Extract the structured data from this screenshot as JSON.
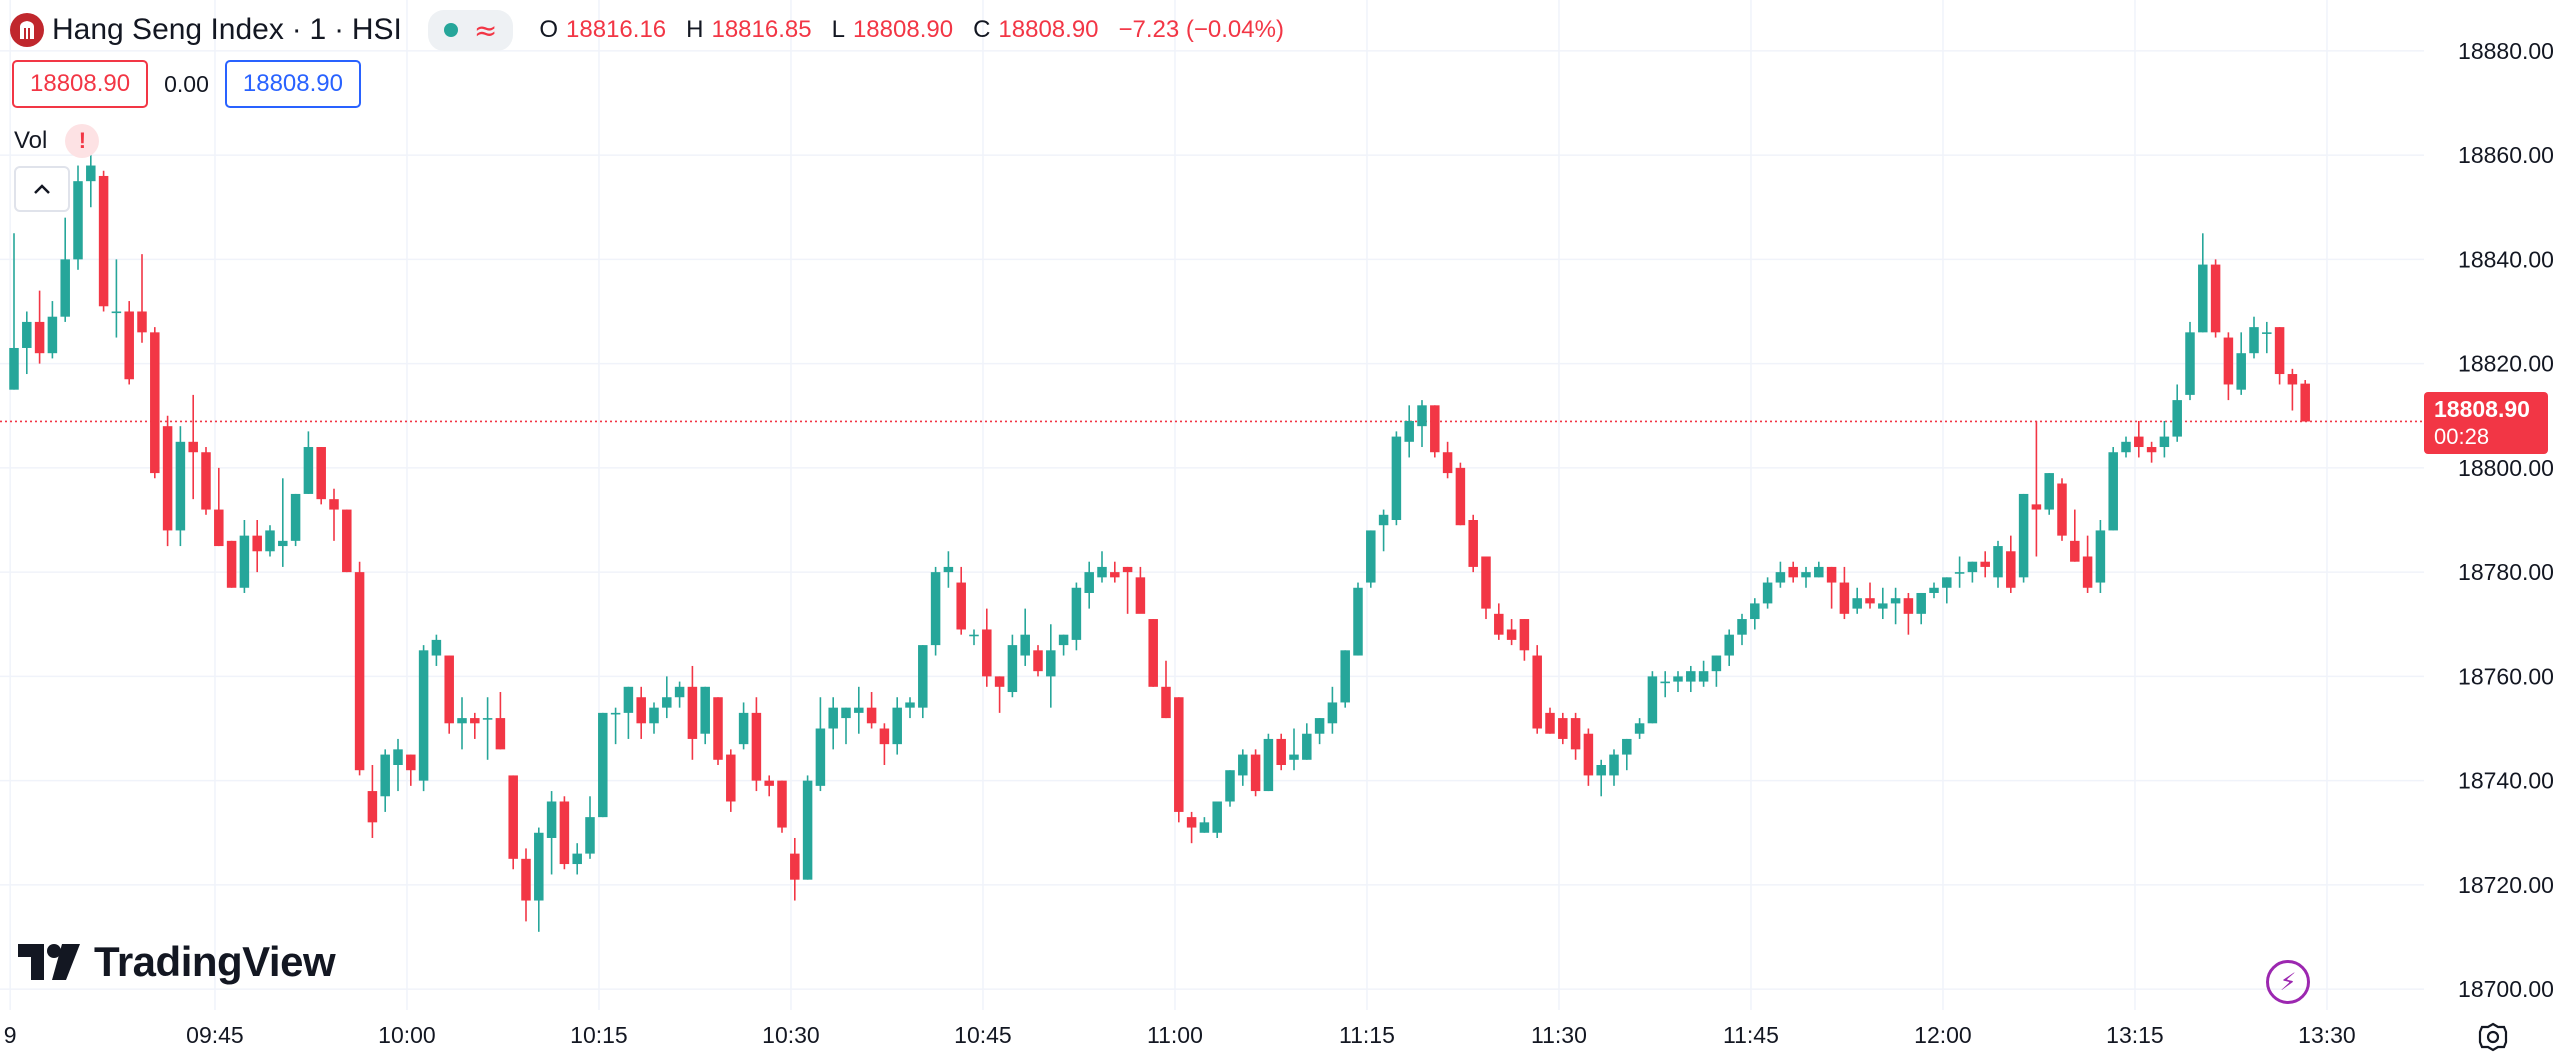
{
  "header": {
    "symbol_title": "Hang Seng Index",
    "interval": "1",
    "exchange": "HSI",
    "separator": "·",
    "status_icons": [
      "market-open-dot-icon",
      "delayed-data-icon"
    ],
    "ohlc": {
      "o_label": "O",
      "o_value": "18816.16",
      "h_label": "H",
      "h_value": "18816.85",
      "l_label": "L",
      "l_value": "18808.90",
      "c_label": "C",
      "c_value": "18808.90",
      "change": "−7.23 (−0.04%)"
    }
  },
  "trade": {
    "sell_price": "18808.90",
    "spread": "0.00",
    "buy_price": "18808.90"
  },
  "indicator": {
    "name": "Vol",
    "warning_icon": "!"
  },
  "brand": "TradingView",
  "price_label": {
    "price": "18808.90",
    "countdown": "00:28"
  },
  "colors": {
    "up": "#26a69a",
    "down": "#f23645",
    "grid": "#f0f3fa",
    "axis_text": "#131722",
    "price_line": "#f23645"
  },
  "chart_data": {
    "type": "candlestick",
    "title": "Hang Seng Index · 1 · HSI",
    "ylabel": "",
    "xlabel": "",
    "ylim": [
      18696,
      18884
    ],
    "y_ticks": [
      "18880.00",
      "18860.00",
      "18840.00",
      "18820.00",
      "18800.00",
      "18780.00",
      "18760.00",
      "18740.00",
      "18720.00",
      "18700.00"
    ],
    "x_ticks": [
      {
        "label": "9",
        "slot": -0.3
      },
      {
        "label": "09:45",
        "slot": 15.7
      },
      {
        "label": "10:00",
        "slot": 30.7
      },
      {
        "label": "10:15",
        "slot": 45.7
      },
      {
        "label": "10:30",
        "slot": 60.7
      },
      {
        "label": "10:45",
        "slot": 75.7
      },
      {
        "label": "11:00",
        "slot": 90.7
      },
      {
        "label": "11:15",
        "slot": 105.7
      },
      {
        "label": "11:30",
        "slot": 120.7
      },
      {
        "label": "11:45",
        "slot": 135.7
      },
      {
        "label": "12:00",
        "slot": 150.7
      },
      {
        "label": "13:15",
        "slot": 165.7
      },
      {
        "label": "13:30",
        "slot": 180.7
      }
    ],
    "last_price": 18808.9,
    "grid": true,
    "candles": [
      {
        "o": 18815,
        "h": 18845,
        "l": 18815,
        "c": 18823
      },
      {
        "o": 18823,
        "h": 18830,
        "l": 18818,
        "c": 18828
      },
      {
        "o": 18828,
        "h": 18834,
        "l": 18820,
        "c": 18822
      },
      {
        "o": 18822,
        "h": 18832,
        "l": 18821,
        "c": 18829
      },
      {
        "o": 18829,
        "h": 18848,
        "l": 18828,
        "c": 18840
      },
      {
        "o": 18840,
        "h": 18858,
        "l": 18838,
        "c": 18855
      },
      {
        "o": 18855,
        "h": 18861,
        "l": 18850,
        "c": 18858
      },
      {
        "o": 18856,
        "h": 18857,
        "l": 18830,
        "c": 18831
      },
      {
        "o": 18830,
        "h": 18840,
        "l": 18825,
        "c": 18830
      },
      {
        "o": 18830,
        "h": 18832,
        "l": 18816,
        "c": 18817
      },
      {
        "o": 18830,
        "h": 18841,
        "l": 18824,
        "c": 18826
      },
      {
        "o": 18826,
        "h": 18827,
        "l": 18798,
        "c": 18799
      },
      {
        "o": 18808,
        "h": 18810,
        "l": 18785,
        "c": 18788
      },
      {
        "o": 18788,
        "h": 18808,
        "l": 18785,
        "c": 18805
      },
      {
        "o": 18805,
        "h": 18814,
        "l": 18794,
        "c": 18803
      },
      {
        "o": 18803,
        "h": 18804,
        "l": 18791,
        "c": 18792
      },
      {
        "o": 18792,
        "h": 18800,
        "l": 18785,
        "c": 18785
      },
      {
        "o": 18786,
        "h": 18786,
        "l": 18777,
        "c": 18777
      },
      {
        "o": 18777,
        "h": 18790,
        "l": 18776,
        "c": 18787
      },
      {
        "o": 18787,
        "h": 18790,
        "l": 18780,
        "c": 18784
      },
      {
        "o": 18784,
        "h": 18789,
        "l": 18783,
        "c": 18788
      },
      {
        "o": 18785,
        "h": 18798,
        "l": 18781,
        "c": 18786
      },
      {
        "o": 18786,
        "h": 18795,
        "l": 18785,
        "c": 18795
      },
      {
        "o": 18795,
        "h": 18807,
        "l": 18795,
        "c": 18804
      },
      {
        "o": 18804,
        "h": 18804,
        "l": 18793,
        "c": 18794
      },
      {
        "o": 18794,
        "h": 18796,
        "l": 18786,
        "c": 18792
      },
      {
        "o": 18792,
        "h": 18792,
        "l": 18780,
        "c": 18780
      },
      {
        "o": 18780,
        "h": 18782,
        "l": 18741,
        "c": 18742
      },
      {
        "o": 18738,
        "h": 18743,
        "l": 18729,
        "c": 18732
      },
      {
        "o": 18737,
        "h": 18746,
        "l": 18734,
        "c": 18745
      },
      {
        "o": 18743,
        "h": 18748,
        "l": 18738,
        "c": 18746
      },
      {
        "o": 18745,
        "h": 18745,
        "l": 18739,
        "c": 18742
      },
      {
        "o": 18740,
        "h": 18766,
        "l": 18738,
        "c": 18765
      },
      {
        "o": 18764,
        "h": 18768,
        "l": 18762,
        "c": 18767
      },
      {
        "o": 18764,
        "h": 18764,
        "l": 18749,
        "c": 18751
      },
      {
        "o": 18751,
        "h": 18756,
        "l": 18746,
        "c": 18752
      },
      {
        "o": 18752,
        "h": 18753,
        "l": 18748,
        "c": 18751
      },
      {
        "o": 18752,
        "h": 18756,
        "l": 18744,
        "c": 18752
      },
      {
        "o": 18752,
        "h": 18757,
        "l": 18746,
        "c": 18746
      },
      {
        "o": 18741,
        "h": 18741,
        "l": 18723,
        "c": 18725
      },
      {
        "o": 18725,
        "h": 18727,
        "l": 18713,
        "c": 18717
      },
      {
        "o": 18717,
        "h": 18731,
        "l": 18711,
        "c": 18730
      },
      {
        "o": 18729,
        "h": 18738,
        "l": 18722,
        "c": 18736
      },
      {
        "o": 18736,
        "h": 18737,
        "l": 18723,
        "c": 18724
      },
      {
        "o": 18724,
        "h": 18728,
        "l": 18722,
        "c": 18726
      },
      {
        "o": 18726,
        "h": 18737,
        "l": 18725,
        "c": 18733
      },
      {
        "o": 18733,
        "h": 18753,
        "l": 18733,
        "c": 18753
      },
      {
        "o": 18753,
        "h": 18754,
        "l": 18747,
        "c": 18753
      },
      {
        "o": 18753,
        "h": 18758,
        "l": 18748,
        "c": 18758
      },
      {
        "o": 18756,
        "h": 18758,
        "l": 18748,
        "c": 18751
      },
      {
        "o": 18751,
        "h": 18755,
        "l": 18749,
        "c": 18754
      },
      {
        "o": 18754,
        "h": 18760,
        "l": 18752,
        "c": 18756
      },
      {
        "o": 18756,
        "h": 18759,
        "l": 18754,
        "c": 18758
      },
      {
        "o": 18758,
        "h": 18762,
        "l": 18744,
        "c": 18748
      },
      {
        "o": 18749,
        "h": 18758,
        "l": 18747,
        "c": 18758
      },
      {
        "o": 18756,
        "h": 18756,
        "l": 18743,
        "c": 18744
      },
      {
        "o": 18745,
        "h": 18746,
        "l": 18734,
        "c": 18736
      },
      {
        "o": 18747,
        "h": 18755,
        "l": 18746,
        "c": 18753
      },
      {
        "o": 18753,
        "h": 18756,
        "l": 18738,
        "c": 18740
      },
      {
        "o": 18740,
        "h": 18741,
        "l": 18737,
        "c": 18739
      },
      {
        "o": 18740,
        "h": 18740,
        "l": 18730,
        "c": 18731
      },
      {
        "o": 18726,
        "h": 18729,
        "l": 18717,
        "c": 18721
      },
      {
        "o": 18721,
        "h": 18741,
        "l": 18721,
        "c": 18740
      },
      {
        "o": 18739,
        "h": 18756,
        "l": 18738,
        "c": 18750
      },
      {
        "o": 18750,
        "h": 18756,
        "l": 18746,
        "c": 18754
      },
      {
        "o": 18752,
        "h": 18754,
        "l": 18747,
        "c": 18754
      },
      {
        "o": 18753,
        "h": 18758,
        "l": 18749,
        "c": 18754
      },
      {
        "o": 18754,
        "h": 18757,
        "l": 18750,
        "c": 18751
      },
      {
        "o": 18750,
        "h": 18751,
        "l": 18743,
        "c": 18747
      },
      {
        "o": 18747,
        "h": 18756,
        "l": 18745,
        "c": 18754
      },
      {
        "o": 18754,
        "h": 18756,
        "l": 18752,
        "c": 18755
      },
      {
        "o": 18754,
        "h": 18766,
        "l": 18752,
        "c": 18766
      },
      {
        "o": 18766,
        "h": 18781,
        "l": 18764,
        "c": 18780
      },
      {
        "o": 18780,
        "h": 18784,
        "l": 18777,
        "c": 18781
      },
      {
        "o": 18778,
        "h": 18781,
        "l": 18768,
        "c": 18769
      },
      {
        "o": 18768,
        "h": 18769,
        "l": 18766,
        "c": 18768
      },
      {
        "o": 18769,
        "h": 18773,
        "l": 18758,
        "c": 18760
      },
      {
        "o": 18760,
        "h": 18760,
        "l": 18753,
        "c": 18758
      },
      {
        "o": 18757,
        "h": 18768,
        "l": 18756,
        "c": 18766
      },
      {
        "o": 18764,
        "h": 18773,
        "l": 18762,
        "c": 18768
      },
      {
        "o": 18765,
        "h": 18766,
        "l": 18760,
        "c": 18761
      },
      {
        "o": 18760,
        "h": 18770,
        "l": 18754,
        "c": 18765
      },
      {
        "o": 18766,
        "h": 18768,
        "l": 18764,
        "c": 18768
      },
      {
        "o": 18767,
        "h": 18778,
        "l": 18765,
        "c": 18777
      },
      {
        "o": 18776,
        "h": 18782,
        "l": 18773,
        "c": 18780
      },
      {
        "o": 18779,
        "h": 18784,
        "l": 18778,
        "c": 18781
      },
      {
        "o": 18780,
        "h": 18782,
        "l": 18778,
        "c": 18779
      },
      {
        "o": 18781,
        "h": 18781,
        "l": 18772,
        "c": 18780
      },
      {
        "o": 18779,
        "h": 18781,
        "l": 18773,
        "c": 18772
      },
      {
        "o": 18771,
        "h": 18771,
        "l": 18758,
        "c": 18758
      },
      {
        "o": 18758,
        "h": 18763,
        "l": 18752,
        "c": 18752
      },
      {
        "o": 18756,
        "h": 18756,
        "l": 18732,
        "c": 18734
      },
      {
        "o": 18733,
        "h": 18734,
        "l": 18728,
        "c": 18731
      },
      {
        "o": 18730,
        "h": 18733,
        "l": 18730,
        "c": 18732
      },
      {
        "o": 18730,
        "h": 18736,
        "l": 18729,
        "c": 18736
      },
      {
        "o": 18736,
        "h": 18742,
        "l": 18735,
        "c": 18742
      },
      {
        "o": 18741,
        "h": 18746,
        "l": 18739,
        "c": 18745
      },
      {
        "o": 18745,
        "h": 18746,
        "l": 18737,
        "c": 18738
      },
      {
        "o": 18738,
        "h": 18749,
        "l": 18738,
        "c": 18748
      },
      {
        "o": 18748,
        "h": 18749,
        "l": 18742,
        "c": 18743
      },
      {
        "o": 18744,
        "h": 18750,
        "l": 18742,
        "c": 18745
      },
      {
        "o": 18744,
        "h": 18751,
        "l": 18744,
        "c": 18749
      },
      {
        "o": 18749,
        "h": 18752,
        "l": 18747,
        "c": 18752
      },
      {
        "o": 18751,
        "h": 18758,
        "l": 18749,
        "c": 18755
      },
      {
        "o": 18755,
        "h": 18765,
        "l": 18754,
        "c": 18765
      },
      {
        "o": 18764,
        "h": 18778,
        "l": 18764,
        "c": 18777
      },
      {
        "o": 18778,
        "h": 18788,
        "l": 18777,
        "c": 18788
      },
      {
        "o": 18789,
        "h": 18792,
        "l": 18784,
        "c": 18791
      },
      {
        "o": 18790,
        "h": 18807,
        "l": 18789,
        "c": 18806
      },
      {
        "o": 18805,
        "h": 18812,
        "l": 18802,
        "c": 18809
      },
      {
        "o": 18808,
        "h": 18813,
        "l": 18804,
        "c": 18812
      },
      {
        "o": 18812,
        "h": 18812,
        "l": 18802,
        "c": 18803
      },
      {
        "o": 18803,
        "h": 18805,
        "l": 18798,
        "c": 18799
      },
      {
        "o": 18800,
        "h": 18801,
        "l": 18789,
        "c": 18789
      },
      {
        "o": 18790,
        "h": 18791,
        "l": 18780,
        "c": 18781
      },
      {
        "o": 18783,
        "h": 18783,
        "l": 18771,
        "c": 18773
      },
      {
        "o": 18772,
        "h": 18774,
        "l": 18767,
        "c": 18768
      },
      {
        "o": 18769,
        "h": 18771,
        "l": 18766,
        "c": 18767
      },
      {
        "o": 18771,
        "h": 18771,
        "l": 18763,
        "c": 18765
      },
      {
        "o": 18764,
        "h": 18766,
        "l": 18749,
        "c": 18750
      },
      {
        "o": 18753,
        "h": 18754,
        "l": 18749,
        "c": 18749
      },
      {
        "o": 18752,
        "h": 18753,
        "l": 18747,
        "c": 18748
      },
      {
        "o": 18752,
        "h": 18753,
        "l": 18744,
        "c": 18746
      },
      {
        "o": 18749,
        "h": 18750,
        "l": 18739,
        "c": 18741
      },
      {
        "o": 18741,
        "h": 18744,
        "l": 18737,
        "c": 18743
      },
      {
        "o": 18741,
        "h": 18746,
        "l": 18739,
        "c": 18745
      },
      {
        "o": 18745,
        "h": 18748,
        "l": 18742,
        "c": 18748
      },
      {
        "o": 18749,
        "h": 18752,
        "l": 18748,
        "c": 18751
      },
      {
        "o": 18751,
        "h": 18761,
        "l": 18751,
        "c": 18760
      },
      {
        "o": 18759,
        "h": 18761,
        "l": 18756,
        "c": 18759
      },
      {
        "o": 18759,
        "h": 18761,
        "l": 18757,
        "c": 18760
      },
      {
        "o": 18759,
        "h": 18762,
        "l": 18757,
        "c": 18761
      },
      {
        "o": 18759,
        "h": 18763,
        "l": 18758,
        "c": 18761
      },
      {
        "o": 18761,
        "h": 18764,
        "l": 18758,
        "c": 18764
      },
      {
        "o": 18764,
        "h": 18769,
        "l": 18762,
        "c": 18768
      },
      {
        "o": 18768,
        "h": 18772,
        "l": 18766,
        "c": 18771
      },
      {
        "o": 18771,
        "h": 18775,
        "l": 18769,
        "c": 18774
      },
      {
        "o": 18774,
        "h": 18779,
        "l": 18773,
        "c": 18778
      },
      {
        "o": 18778,
        "h": 18782,
        "l": 18777,
        "c": 18780
      },
      {
        "o": 18781,
        "h": 18782,
        "l": 18778,
        "c": 18779
      },
      {
        "o": 18779,
        "h": 18781,
        "l": 18777,
        "c": 18780
      },
      {
        "o": 18779,
        "h": 18782,
        "l": 18779,
        "c": 18781
      },
      {
        "o": 18781,
        "h": 18781,
        "l": 18773,
        "c": 18778
      },
      {
        "o": 18778,
        "h": 18781,
        "l": 18771,
        "c": 18772
      },
      {
        "o": 18773,
        "h": 18777,
        "l": 18772,
        "c": 18775
      },
      {
        "o": 18775,
        "h": 18778,
        "l": 18773,
        "c": 18774
      },
      {
        "o": 18773,
        "h": 18777,
        "l": 18771,
        "c": 18774
      },
      {
        "o": 18774,
        "h": 18777,
        "l": 18770,
        "c": 18775
      },
      {
        "o": 18775,
        "h": 18776,
        "l": 18768,
        "c": 18772
      },
      {
        "o": 18772,
        "h": 18776,
        "l": 18770,
        "c": 18776
      },
      {
        "o": 18776,
        "h": 18778,
        "l": 18775,
        "c": 18777
      },
      {
        "o": 18777,
        "h": 18779,
        "l": 18774,
        "c": 18779
      },
      {
        "o": 18780,
        "h": 18783,
        "l": 18777,
        "c": 18780
      },
      {
        "o": 18780,
        "h": 18782,
        "l": 18778,
        "c": 18782
      },
      {
        "o": 18782,
        "h": 18784,
        "l": 18779,
        "c": 18781
      },
      {
        "o": 18779,
        "h": 18786,
        "l": 18777,
        "c": 18785
      },
      {
        "o": 18784,
        "h": 18787,
        "l": 18776,
        "c": 18777
      },
      {
        "o": 18779,
        "h": 18795,
        "l": 18778,
        "c": 18795
      },
      {
        "o": 18793,
        "h": 18809,
        "l": 18783,
        "c": 18792
      },
      {
        "o": 18792,
        "h": 18799,
        "l": 18791,
        "c": 18799
      },
      {
        "o": 18797,
        "h": 18798,
        "l": 18786,
        "c": 18787
      },
      {
        "o": 18786,
        "h": 18792,
        "l": 18782,
        "c": 18782
      },
      {
        "o": 18783,
        "h": 18787,
        "l": 18776,
        "c": 18777
      },
      {
        "o": 18778,
        "h": 18790,
        "l": 18776,
        "c": 18788
      },
      {
        "o": 18788,
        "h": 18804,
        "l": 18788,
        "c": 18803
      },
      {
        "o": 18803,
        "h": 18806,
        "l": 18802,
        "c": 18805
      },
      {
        "o": 18806,
        "h": 18809,
        "l": 18802,
        "c": 18804
      },
      {
        "o": 18804,
        "h": 18805,
        "l": 18801,
        "c": 18803
      },
      {
        "o": 18804,
        "h": 18809,
        "l": 18802,
        "c": 18806
      },
      {
        "o": 18806,
        "h": 18816,
        "l": 18805,
        "c": 18813
      },
      {
        "o": 18814,
        "h": 18828,
        "l": 18813,
        "c": 18826
      },
      {
        "o": 18826,
        "h": 18845,
        "l": 18826,
        "c": 18839
      },
      {
        "o": 18839,
        "h": 18840,
        "l": 18825,
        "c": 18826
      },
      {
        "o": 18825,
        "h": 18826,
        "l": 18813,
        "c": 18816
      },
      {
        "o": 18815,
        "h": 18826,
        "l": 18814,
        "c": 18822
      },
      {
        "o": 18822,
        "h": 18829,
        "l": 18821,
        "c": 18827
      },
      {
        "o": 18826,
        "h": 18828,
        "l": 18822,
        "c": 18826
      },
      {
        "o": 18827,
        "h": 18827,
        "l": 18816,
        "c": 18818
      },
      {
        "o": 18818,
        "h": 18819,
        "l": 18811,
        "c": 18816
      },
      {
        "o": 18816.16,
        "h": 18816.85,
        "l": 18808.9,
        "c": 18808.9
      }
    ]
  }
}
